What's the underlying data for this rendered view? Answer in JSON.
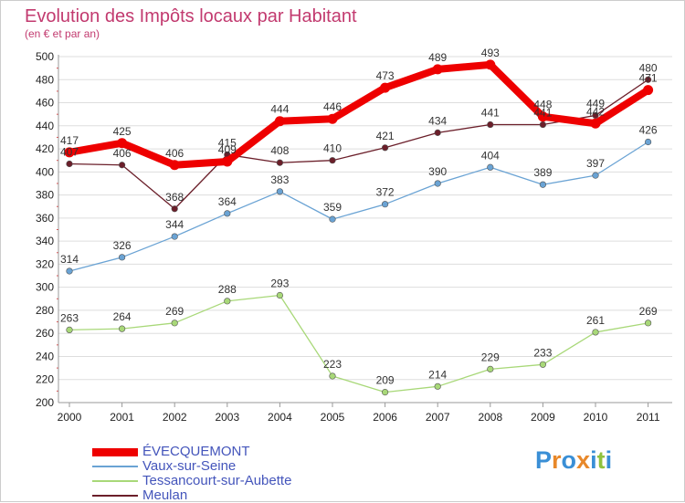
{
  "title": "Evolution des Impôts locaux par Habitant",
  "subtitle": "(en € et par an)",
  "logo": {
    "letters": [
      "P",
      "r",
      "o",
      "x",
      "i",
      "t",
      "i"
    ],
    "colors": [
      "#3a8fd6",
      "#e8882a",
      "#3a8fd6",
      "#e8882a",
      "#3a8fd6",
      "#8fc23e",
      "#3a8fd6"
    ]
  },
  "chart_data": {
    "type": "line",
    "x": [
      "2000",
      "2001",
      "2002",
      "2003",
      "2004",
      "2005",
      "2006",
      "2007",
      "2008",
      "2009",
      "2010",
      "2011"
    ],
    "ylim": [
      200,
      500
    ],
    "yticks": [
      "200",
      "220",
      "240",
      "260",
      "280",
      "300",
      "320",
      "340",
      "360",
      "380",
      "400",
      "420",
      "440",
      "460",
      "480",
      "500"
    ],
    "grid": "horizontal",
    "legend": "bottom-left",
    "series": [
      {
        "name": "Meulan",
        "color": "#6b1f2a",
        "style": "thin",
        "values": [
          407,
          406,
          368,
          415,
          408,
          410,
          421,
          434,
          441,
          441,
          449,
          480
        ],
        "labels": [
          "407",
          "406",
          "368",
          "415",
          "408",
          "410",
          "421",
          "434",
          "441",
          "441",
          "449",
          "480"
        ]
      },
      {
        "name": "Vaux-sur-Seine",
        "color": "#6aa3d4",
        "style": "thin",
        "values": [
          314,
          326,
          344,
          364,
          383,
          359,
          372,
          390,
          404,
          389,
          397,
          426
        ],
        "labels": [
          "314",
          "326",
          "344",
          "364",
          "383",
          "359",
          "372",
          "390",
          "404",
          "389",
          "397",
          "426"
        ]
      },
      {
        "name": "Tessancourt-sur-Aubette",
        "color": "#a8d878",
        "style": "thin",
        "values": [
          263,
          264,
          269,
          288,
          293,
          223,
          209,
          214,
          229,
          233,
          261,
          269
        ],
        "labels": [
          "263",
          "264",
          "269",
          "288",
          "293",
          "223",
          "209",
          "214",
          "229",
          "233",
          "261",
          "269"
        ]
      },
      {
        "name": "ÉVECQUEMONT",
        "color": "#ee0000",
        "style": "thick",
        "values": [
          417,
          425,
          406,
          409,
          444,
          446,
          473,
          489,
          493,
          448,
          442,
          471
        ],
        "labels": [
          "417",
          "425",
          "406",
          "409",
          "444",
          "446",
          "473",
          "489",
          "493",
          "448",
          "442",
          "471"
        ]
      }
    ],
    "legend_order": [
      "ÉVECQUEMONT",
      "Vaux-sur-Seine",
      "Tessancourt-sur-Aubette",
      "Meulan"
    ]
  }
}
